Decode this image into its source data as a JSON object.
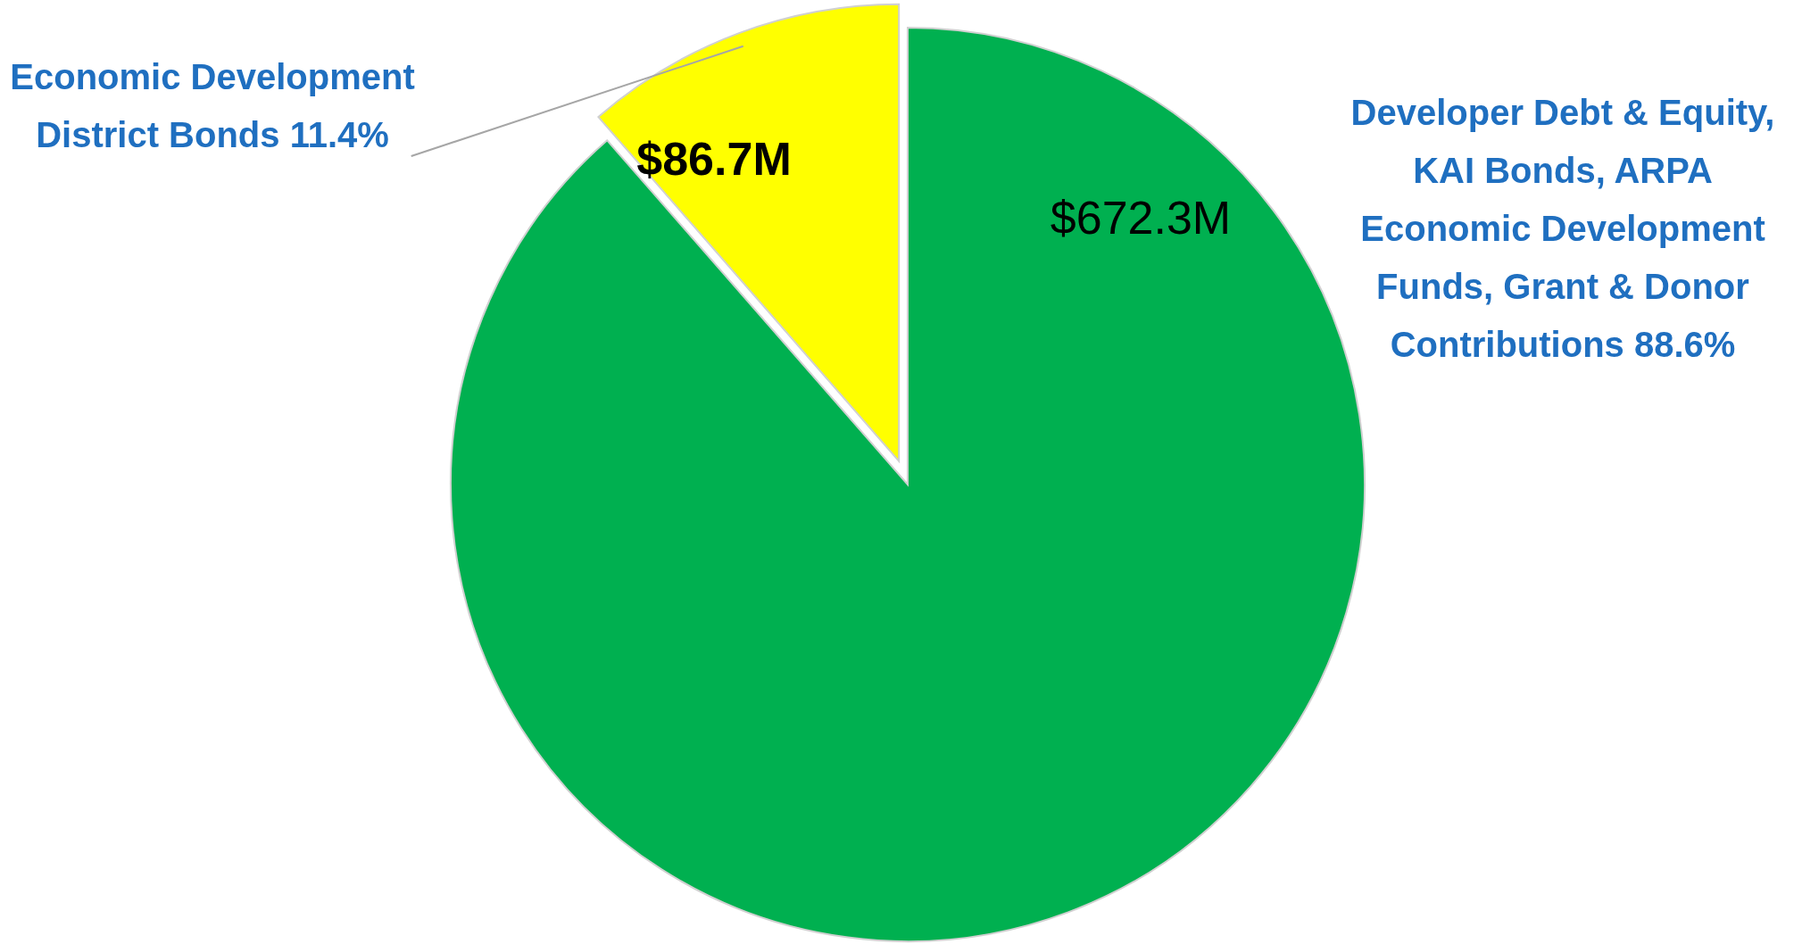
{
  "chart_data": {
    "type": "pie",
    "categories": [
      "Developer Debt & Equity, KAI Bonds, ARPA Economic Development Funds, Grant & Donor Contributions 88.6%",
      "Economic Development District Bonds 11.4%"
    ],
    "values": [
      672.3,
      86.7
    ],
    "colors": [
      "#00b050",
      "#ffff00"
    ],
    "value_labels": [
      "$672.3M",
      "$86.7M"
    ]
  }
}
